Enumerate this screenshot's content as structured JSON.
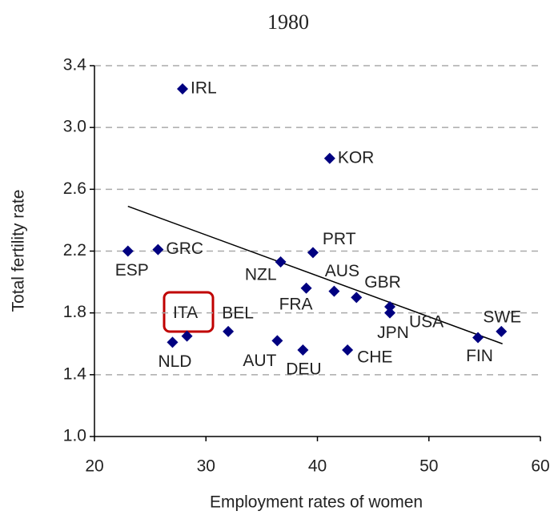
{
  "chart_data": {
    "type": "scatter",
    "title": "1980",
    "xlabel": "Employment rates of women",
    "ylabel": "Total fertility rate",
    "labels": [
      "IRL",
      "KOR",
      "ESP",
      "GRC",
      "NZL",
      "PRT",
      "AUS",
      "FRA",
      "GBR",
      "USA",
      "JPN",
      "SWE",
      "FIN",
      "ITA",
      "NLD",
      "BEL",
      "AUT",
      "DEU",
      "CHE"
    ],
    "x": [
      27.9,
      41.1,
      23.0,
      25.7,
      36.7,
      39.6,
      41.5,
      39.0,
      43.5,
      46.5,
      46.5,
      56.5,
      54.4,
      28.3,
      27.0,
      32.0,
      36.4,
      38.7,
      42.7
    ],
    "y": [
      3.25,
      2.8,
      2.2,
      2.21,
      2.13,
      2.19,
      1.94,
      1.96,
      1.9,
      1.84,
      1.8,
      1.68,
      1.64,
      1.65,
      1.61,
      1.68,
      1.62,
      1.56,
      1.56
    ],
    "color": "#000080",
    "trendline": {
      "x": [
        23.0,
        56.6
      ],
      "y": [
        2.49,
        1.6
      ]
    },
    "xlim": [
      20,
      60
    ],
    "xticks": [
      20,
      30,
      40,
      50,
      60
    ],
    "ylim": [
      1.0,
      3.4
    ],
    "yticks": [
      {
        "value": 1.0,
        "label": "1.0"
      },
      1.4,
      1.8,
      2.2,
      2.6,
      {
        "value": 3.0,
        "label": "3.0"
      },
      3.4
    ],
    "grid": true
  }
}
